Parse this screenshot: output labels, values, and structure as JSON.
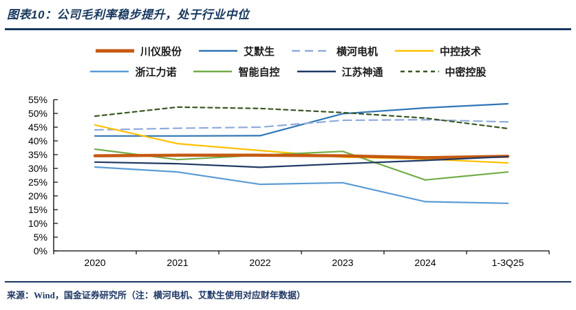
{
  "header": {
    "title": "图表10：公司毛利率稳步提升，处于行业中位"
  },
  "footer": {
    "source": "来源：Wind，国金证券研究所（注：横河电机、艾默生使用对应财年数据）"
  },
  "colors": {
    "accent_rule": "#17375E",
    "title_text": "#17375E",
    "footer_text": "#1F3864",
    "axis": "#000000",
    "tick_label": "#000000"
  },
  "chart_data": {
    "type": "line",
    "title": "图表10：公司毛利率稳步提升，处于行业中位",
    "categories": [
      "2020",
      "2021",
      "2022",
      "2023",
      "2024",
      "1-3Q25"
    ],
    "xlabel": "",
    "ylabel": "",
    "ylim": [
      0,
      55
    ],
    "ytick_step": 5,
    "ytick_labels": [
      "0%",
      "5%",
      "10%",
      "15%",
      "20%",
      "25%",
      "30%",
      "35%",
      "40%",
      "45%",
      "50%",
      "55%"
    ],
    "grid": false,
    "legend_position": "top",
    "legend_rows": [
      [
        0,
        1,
        2,
        3
      ],
      [
        4,
        5,
        6,
        7
      ]
    ],
    "series": [
      {
        "name": "川仪股份",
        "color": "#C55A11",
        "width": 4.5,
        "dash": null,
        "values": [
          34.6,
          34.8,
          34.8,
          34.6,
          33.9,
          34.4
        ]
      },
      {
        "name": "艾默生",
        "color": "#2E75B6",
        "width": 2.2,
        "dash": null,
        "values": [
          41.8,
          41.8,
          41.9,
          49.9,
          52.0,
          53.5
        ]
      },
      {
        "name": "横河电机",
        "color": "#8FAADC",
        "width": 2.2,
        "dash": "12 7",
        "values": [
          44.0,
          44.6,
          45.0,
          47.5,
          47.7,
          46.9
        ]
      },
      {
        "name": "中控技术",
        "color": "#FFC000",
        "width": 2.2,
        "dash": null,
        "values": [
          45.8,
          39.0,
          36.5,
          34.1,
          33.4,
          32.0
        ]
      },
      {
        "name": "浙江力诺",
        "color": "#5B9BD5",
        "width": 2.2,
        "dash": null,
        "values": [
          30.5,
          28.7,
          24.2,
          24.8,
          17.9,
          17.3
        ]
      },
      {
        "name": "智能自控",
        "color": "#70AD47",
        "width": 2.2,
        "dash": null,
        "values": [
          37.0,
          33.2,
          34.8,
          36.2,
          25.8,
          28.7
        ]
      },
      {
        "name": "江苏神通",
        "color": "#1F3864",
        "width": 2.2,
        "dash": null,
        "values": [
          32.3,
          31.7,
          30.4,
          31.7,
          32.9,
          34.3
        ]
      },
      {
        "name": "中密控股",
        "color": "#375623",
        "width": 2.2,
        "dash": "6 5",
        "values": [
          49.0,
          52.3,
          51.8,
          50.3,
          48.3,
          44.5
        ]
      }
    ]
  }
}
